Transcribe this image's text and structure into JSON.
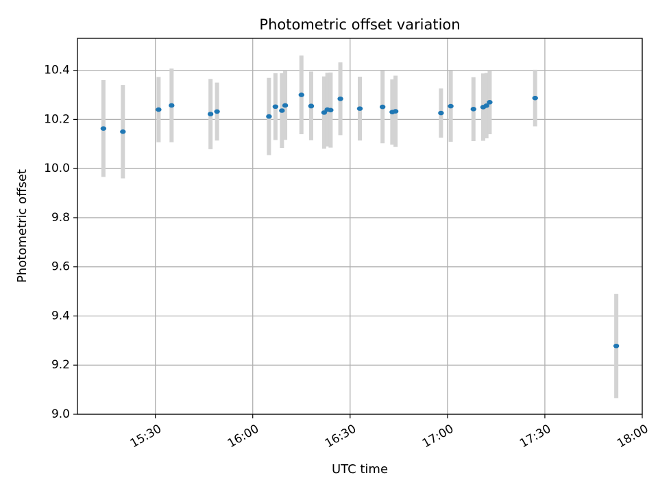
{
  "chart_data": {
    "type": "scatter",
    "title": "Photometric offset variation",
    "xlabel": "UTC time",
    "ylabel": "Photometric offset",
    "xlim": [
      "15:06",
      "18:00"
    ],
    "ylim": [
      9.0,
      10.53
    ],
    "grid": true,
    "x_ticks": [
      "15:30",
      "16:00",
      "16:30",
      "17:00",
      "17:30",
      "18:00"
    ],
    "y_ticks": [
      "9.0",
      "9.2",
      "9.4",
      "9.6",
      "9.8",
      "10.0",
      "10.2",
      "10.4"
    ],
    "series": [
      {
        "marker_color": "#1f77b4",
        "errorbar_color": "#d3d3d3",
        "points": [
          {
            "x": "15:14",
            "y": 10.163,
            "yerr": 0.197
          },
          {
            "x": "15:20",
            "y": 10.15,
            "yerr": 0.19
          },
          {
            "x": "15:31",
            "y": 10.24,
            "yerr": 0.133
          },
          {
            "x": "15:35",
            "y": 10.257,
            "yerr": 0.15
          },
          {
            "x": "15:47",
            "y": 10.222,
            "yerr": 0.143
          },
          {
            "x": "15:49",
            "y": 10.232,
            "yerr": 0.118
          },
          {
            "x": "16:05",
            "y": 10.212,
            "yerr": 0.157
          },
          {
            "x": "16:07",
            "y": 10.252,
            "yerr": 0.136
          },
          {
            "x": "16:09",
            "y": 10.236,
            "yerr": 0.152
          },
          {
            "x": "16:10",
            "y": 10.257,
            "yerr": 0.14
          },
          {
            "x": "16:15",
            "y": 10.3,
            "yerr": 0.16
          },
          {
            "x": "16:18",
            "y": 10.254,
            "yerr": 0.135
          },
          {
            "x": "16:18",
            "y": 10.255,
            "yerr": 0.14
          },
          {
            "x": "16:22",
            "y": 10.228,
            "yerr": 0.147
          },
          {
            "x": "16:23",
            "y": 10.24,
            "yerr": 0.15
          },
          {
            "x": "16:24",
            "y": 10.238,
            "yerr": 0.153
          },
          {
            "x": "16:27",
            "y": 10.284,
            "yerr": 0.148
          },
          {
            "x": "16:33",
            "y": 10.244,
            "yerr": 0.13
          },
          {
            "x": "16:40",
            "y": 10.251,
            "yerr": 0.148
          },
          {
            "x": "16:43",
            "y": 10.23,
            "yerr": 0.133
          },
          {
            "x": "16:44",
            "y": 10.233,
            "yerr": 0.145
          },
          {
            "x": "16:58",
            "y": 10.226,
            "yerr": 0.1
          },
          {
            "x": "17:01",
            "y": 10.254,
            "yerr": 0.145
          },
          {
            "x": "17:08",
            "y": 10.242,
            "yerr": 0.13
          },
          {
            "x": "17:11",
            "y": 10.25,
            "yerr": 0.137
          },
          {
            "x": "17:12",
            "y": 10.256,
            "yerr": 0.133
          },
          {
            "x": "17:13",
            "y": 10.27,
            "yerr": 0.13
          },
          {
            "x": "17:27",
            "y": 10.287,
            "yerr": 0.115
          },
          {
            "x": "17:52",
            "y": 9.278,
            "yerr": 0.212
          }
        ]
      }
    ]
  }
}
